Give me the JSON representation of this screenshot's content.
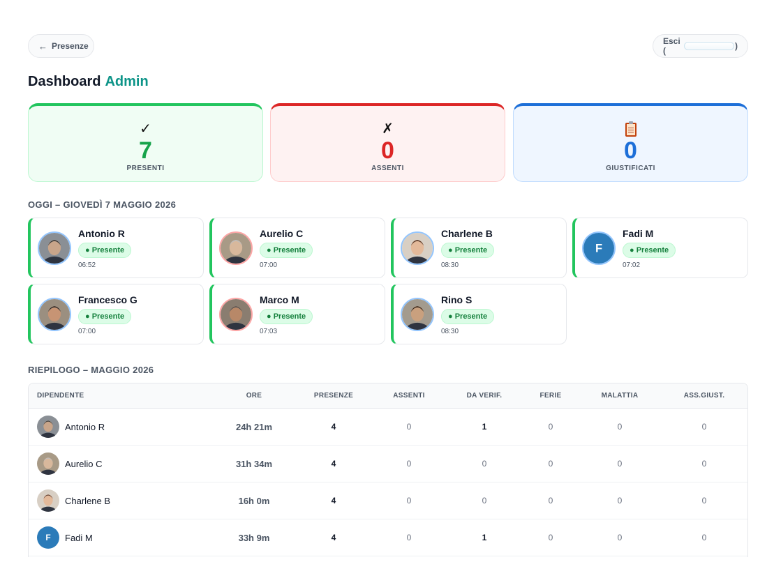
{
  "nav": {
    "back_label": "Presenze",
    "exit_label_prefix": "Esci (",
    "exit_label_suffix": ")"
  },
  "header": {
    "title": "Dashboard",
    "title_accent": "Admin"
  },
  "stats": {
    "present": {
      "icon": "check-icon",
      "value": "7",
      "label": "PRESENTI",
      "color": "#16a34a"
    },
    "absent": {
      "icon": "cross-icon",
      "value": "0",
      "label": "ASSENTI",
      "color": "#dc2626"
    },
    "justified": {
      "icon": "clipboard-icon",
      "value": "0",
      "label": "GIUSTIFICATI",
      "color": "#1d6fd8"
    }
  },
  "today": {
    "heading": "OGGI – GIOVEDÌ 7 MAGGIO 2026",
    "people": [
      {
        "name": "Antonio R",
        "status": "● Presente",
        "time": "06:52"
      },
      {
        "name": "Aurelio C",
        "status": "● Presente",
        "time": "07:00"
      },
      {
        "name": "Charlene B",
        "status": "● Presente",
        "time": "08:30"
      },
      {
        "name": "Fadi M",
        "status": "● Presente",
        "time": "07:02",
        "initial": "F"
      },
      {
        "name": "Francesco G",
        "status": "● Presente",
        "time": "07:00"
      },
      {
        "name": "Marco M",
        "status": "● Presente",
        "time": "07:03"
      },
      {
        "name": "Rino S",
        "status": "● Presente",
        "time": "08:30"
      }
    ]
  },
  "summary": {
    "heading": "RIEPILOGO – MAGGIO 2026",
    "columns": [
      "DIPENDENTE",
      "ORE",
      "PRESENZE",
      "ASSENTI",
      "DA VERIF.",
      "FERIE",
      "MALATTIA",
      "ASS.GIUST."
    ],
    "rows": [
      {
        "name": "Antonio R",
        "hours": "24h 21m",
        "presenze": "4",
        "assenti": "0",
        "da_verif": "1",
        "ferie": "0",
        "malattia": "0",
        "ass_giust": "0"
      },
      {
        "name": "Aurelio C",
        "hours": "31h 34m",
        "presenze": "4",
        "assenti": "0",
        "da_verif": "0",
        "ferie": "0",
        "malattia": "0",
        "ass_giust": "0"
      },
      {
        "name": "Charlene B",
        "hours": "16h 0m",
        "presenze": "4",
        "assenti": "0",
        "da_verif": "0",
        "ferie": "0",
        "malattia": "0",
        "ass_giust": "0"
      },
      {
        "name": "Fadi M",
        "hours": "33h 9m",
        "presenze": "4",
        "assenti": "0",
        "da_verif": "1",
        "ferie": "0",
        "malattia": "0",
        "ass_giust": "0",
        "initial": "F"
      }
    ]
  },
  "colors": {
    "accent": "#0d9488",
    "present_border": "#22c55e",
    "initial_avatar": "#2b7bb9"
  }
}
